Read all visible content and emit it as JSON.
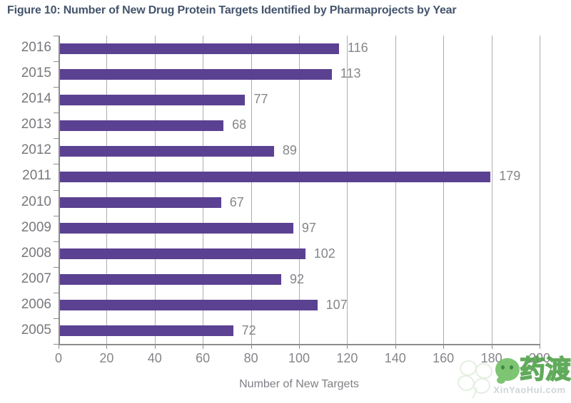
{
  "title": "Figure 10: Number of New Drug Protein Targets Identified by Pharmaprojects by Year",
  "chart_data": {
    "type": "bar",
    "orientation": "horizontal",
    "categories": [
      "2016",
      "2015",
      "2014",
      "2013",
      "2012",
      "2011",
      "2010",
      "2009",
      "2008",
      "2007",
      "2006",
      "2005"
    ],
    "values": [
      116,
      113,
      77,
      68,
      89,
      179,
      67,
      97,
      102,
      92,
      107,
      72
    ],
    "title": "Figure 10: Number of New Drug Protein Targets Identified by Pharmaprojects by Year",
    "xlabel": "Number of New Targets",
    "ylabel": "",
    "xlim": [
      0,
      200
    ],
    "xticks": [
      0,
      20,
      40,
      60,
      80,
      100,
      120,
      140,
      160,
      180,
      200
    ],
    "grid": true,
    "legend": false,
    "value_labels": true,
    "bar_color": "#5B4191"
  },
  "colors": {
    "bar": "#5B4191",
    "title_text": "#44546C",
    "axis_text": "#85868A",
    "gridline": "#AEAEB2",
    "axis_line": "#8C8C90",
    "watermark_green": "#6FBF63"
  },
  "watermark": {
    "brand_text": "药渡",
    "url_text": "XinYaoHui.com"
  }
}
